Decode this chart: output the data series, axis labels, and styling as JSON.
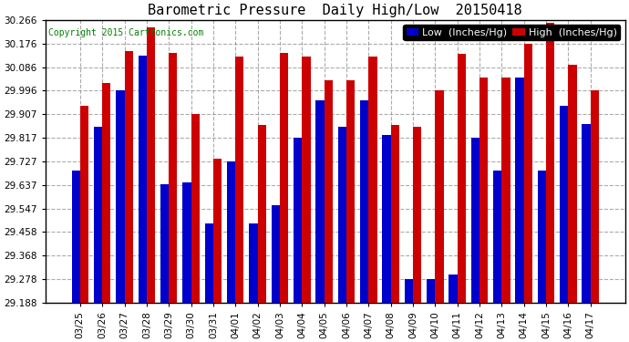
{
  "title": "Barometric Pressure  Daily High/Low  20150418",
  "copyright": "Copyright 2015 Cartronics.com",
  "legend_low": "Low  (Inches/Hg)",
  "legend_high": "High  (Inches/Hg)",
  "categories": [
    "03/25",
    "03/26",
    "03/27",
    "03/28",
    "03/29",
    "03/30",
    "03/31",
    "04/01",
    "04/02",
    "04/03",
    "04/04",
    "04/05",
    "04/06",
    "04/07",
    "04/08",
    "04/09",
    "04/10",
    "04/11",
    "04/12",
    "04/13",
    "04/14",
    "04/15",
    "04/16",
    "04/17"
  ],
  "low_values": [
    29.692,
    29.857,
    29.997,
    30.13,
    29.64,
    29.647,
    29.49,
    29.727,
    29.49,
    29.56,
    29.817,
    29.96,
    29.857,
    29.96,
    29.827,
    29.278,
    29.278,
    29.295,
    29.817,
    29.69,
    30.046,
    29.69,
    29.937,
    29.868
  ],
  "high_values": [
    29.937,
    30.026,
    30.146,
    30.236,
    30.14,
    29.907,
    29.737,
    30.127,
    29.867,
    30.14,
    30.127,
    30.036,
    30.036,
    30.127,
    29.867,
    29.857,
    29.997,
    30.136,
    30.046,
    30.046,
    30.176,
    30.256,
    30.096,
    29.997
  ],
  "ylim_min": 29.188,
  "ylim_max": 30.266,
  "yticks": [
    29.188,
    29.278,
    29.368,
    29.458,
    29.547,
    29.637,
    29.727,
    29.817,
    29.907,
    29.996,
    30.086,
    30.176,
    30.266
  ],
  "bar_color_low": "#0000cc",
  "bar_color_high": "#cc0000",
  "bg_color": "#ffffff",
  "grid_color": "#888888",
  "title_fontsize": 11,
  "copyright_fontsize": 7,
  "legend_fontsize": 8,
  "tick_fontsize": 7.5
}
